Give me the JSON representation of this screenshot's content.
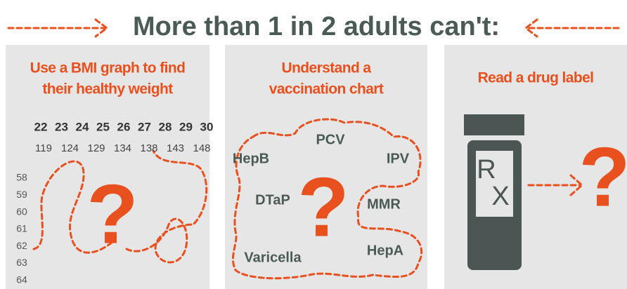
{
  "header": {
    "title": "More than 1 in 2 adults can't:"
  },
  "panels": [
    {
      "heading": [
        "Use a BMI graph to find",
        "their healthy weight"
      ],
      "bmi": [
        22,
        23,
        24,
        25,
        26,
        27,
        28,
        29,
        30
      ],
      "weights": [
        119,
        124,
        129,
        134,
        138,
        143,
        148
      ],
      "heights": [
        58,
        59,
        60,
        61,
        62,
        63,
        64
      ],
      "symbol": "?"
    },
    {
      "heading": [
        "Understand a",
        "vaccination chart"
      ],
      "vaccines": [
        "HepB",
        "PCV",
        "IPV",
        "DTaP",
        "MMR",
        "Varicella",
        "HepA"
      ],
      "symbol": "?"
    },
    {
      "heading": [
        "Read a drug label"
      ],
      "label": [
        "R",
        "X"
      ],
      "symbol": "?"
    }
  ]
}
